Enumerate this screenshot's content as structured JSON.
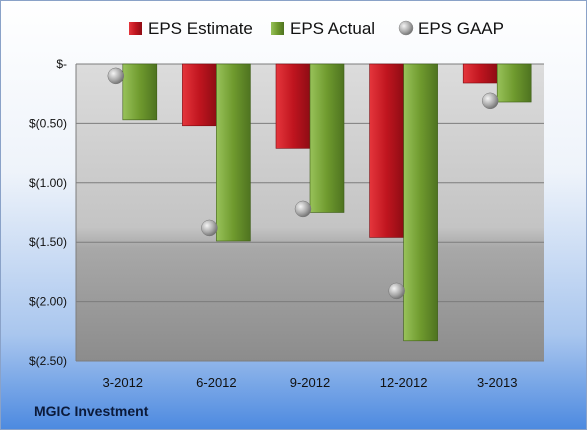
{
  "company": "MGIC Investment",
  "chart_data": {
    "type": "bar",
    "categories": [
      "3-2012",
      "6-2012",
      "9-2012",
      "12-2012",
      "3-2013"
    ],
    "series": [
      {
        "name": "EPS Estimate",
        "values": [
          null,
          -0.52,
          -0.71,
          -1.46,
          -0.16
        ],
        "color": "#c0151f"
      },
      {
        "name": "EPS Actual",
        "values": [
          -0.47,
          -1.49,
          -1.25,
          -2.33,
          -0.32
        ],
        "color": "#6f9a2e"
      },
      {
        "name": "EPS GAAP",
        "values": [
          -0.1,
          -1.38,
          -1.22,
          -1.91,
          -0.31
        ],
        "color": "#a0a0a0",
        "marker": "sphere"
      }
    ],
    "ylim": [
      -2.5,
      0
    ],
    "yticks": [
      0,
      -0.5,
      -1,
      -1.5,
      -2,
      -2.5
    ],
    "ytick_labels": [
      "$-",
      "$(0.50)",
      "$(1.00)",
      "$(1.50)",
      "$(2.00)",
      "$(2.50)"
    ],
    "legend_position": "top",
    "grid": true
  }
}
